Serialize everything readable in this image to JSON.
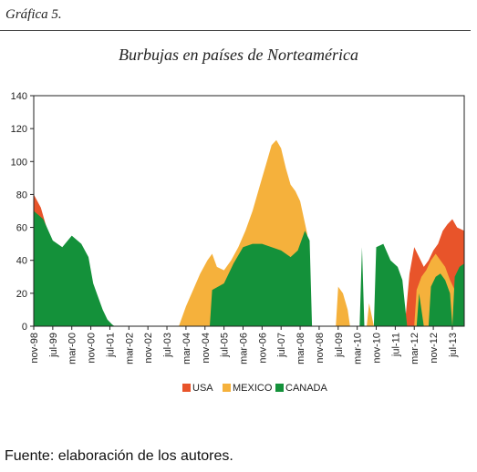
{
  "header": {
    "label": "Gráfica 5."
  },
  "source": "Fuente: elaboración de los autores.",
  "chart_data": {
    "type": "area",
    "title": "Burbujas en países de Norteamérica",
    "ylim": [
      0,
      140
    ],
    "yticks": [
      0,
      20,
      40,
      60,
      80,
      100,
      120,
      140
    ],
    "x_start": "nov-98",
    "x_end": "dic-13",
    "xticks": [
      "nov-98",
      "jul-99",
      "mar-00",
      "nov-00",
      "jul-01",
      "mar-02",
      "nov-02",
      "jul-03",
      "mar-04",
      "nov-04",
      "jul-05",
      "mar-06",
      "nov-06",
      "jul-07",
      "mar-08",
      "nov-08",
      "jul-09",
      "mar-10",
      "nov-10",
      "jul-11",
      "mar-12",
      "nov-12",
      "jul-13"
    ],
    "grid": false,
    "legend": "bottom",
    "colors": {
      "USA": "#e8542a",
      "MEXICO": "#f5b13c",
      "CANADA": "#14913a"
    },
    "series": [
      {
        "name": "USA",
        "points": [
          [
            "nov-98",
            80
          ],
          [
            "feb-99",
            72
          ],
          [
            "abr-99",
            62
          ],
          [
            "may-99",
            58
          ],
          [
            "jun-99",
            52
          ],
          [
            "jul-99",
            0
          ],
          [
            "nov-11",
            0
          ],
          [
            "ene-12",
            32
          ],
          [
            "mar-12",
            48
          ],
          [
            "may-12",
            42
          ],
          [
            "jul-12",
            36
          ],
          [
            "sep-12",
            40
          ],
          [
            "nov-12",
            46
          ],
          [
            "ene-13",
            50
          ],
          [
            "mar-13",
            58
          ],
          [
            "may-13",
            62
          ],
          [
            "jul-13",
            65
          ],
          [
            "sep-13",
            60
          ],
          [
            "dic-13",
            58
          ]
        ]
      },
      {
        "name": "MEXICO",
        "points": [
          [
            "dic-03",
            0
          ],
          [
            "mar-04",
            12
          ],
          [
            "jun-04",
            22
          ],
          [
            "sep-04",
            32
          ],
          [
            "dic-04",
            40
          ],
          [
            "feb-05",
            44
          ],
          [
            "abr-05",
            36
          ],
          [
            "jul-05",
            34
          ],
          [
            "oct-05",
            40
          ],
          [
            "ene-06",
            48
          ],
          [
            "abr-06",
            58
          ],
          [
            "jul-06",
            70
          ],
          [
            "oct-06",
            85
          ],
          [
            "ene-07",
            100
          ],
          [
            "mar-07",
            110
          ],
          [
            "may-07",
            113
          ],
          [
            "jul-07",
            108
          ],
          [
            "sep-07",
            96
          ],
          [
            "nov-07",
            86
          ],
          [
            "ene-08",
            82
          ],
          [
            "mar-08",
            76
          ],
          [
            "jun-08",
            56
          ],
          [
            "jul-08",
            0
          ],
          [
            "jun-09",
            0
          ],
          [
            "jul-09",
            24
          ],
          [
            "sep-09",
            20
          ],
          [
            "nov-09",
            10
          ],
          [
            "dic-09",
            0
          ],
          [
            "jul-10",
            0
          ],
          [
            "ago-10",
            14
          ],
          [
            "oct-10",
            0
          ],
          [
            "mar-12",
            0
          ],
          [
            "abr-12",
            22
          ],
          [
            "jun-12",
            30
          ],
          [
            "ago-12",
            34
          ],
          [
            "oct-12",
            40
          ],
          [
            "dic-12",
            44
          ],
          [
            "feb-13",
            40
          ],
          [
            "abr-13",
            36
          ],
          [
            "jun-13",
            28
          ],
          [
            "ago-13",
            22
          ],
          [
            "sep-13",
            0
          ]
        ]
      },
      {
        "name": "CANADA",
        "points": [
          [
            "nov-98",
            70
          ],
          [
            "mar-99",
            65
          ],
          [
            "jul-99",
            52
          ],
          [
            "nov-99",
            48
          ],
          [
            "mar-00",
            55
          ],
          [
            "jul-00",
            50
          ],
          [
            "oct-00",
            42
          ],
          [
            "dic-00",
            26
          ],
          [
            "feb-01",
            18
          ],
          [
            "abr-01",
            10
          ],
          [
            "jun-01",
            4
          ],
          [
            "ago-01",
            1
          ],
          [
            "sep-01",
            0
          ],
          [
            "ene-05",
            0
          ],
          [
            "feb-05",
            22
          ],
          [
            "jul-05",
            26
          ],
          [
            "nov-05",
            38
          ],
          [
            "mar-06",
            48
          ],
          [
            "jul-06",
            50
          ],
          [
            "nov-06",
            50
          ],
          [
            "mar-07",
            48
          ],
          [
            "jul-07",
            46
          ],
          [
            "nov-07",
            42
          ],
          [
            "feb-08",
            46
          ],
          [
            "may-08",
            58
          ],
          [
            "jul-08",
            52
          ],
          [
            "ago-08",
            0
          ],
          [
            "abr-10",
            0
          ],
          [
            "may-10",
            48
          ],
          [
            "jun-10",
            0
          ],
          [
            "oct-10",
            0
          ],
          [
            "nov-10",
            48
          ],
          [
            "feb-11",
            50
          ],
          [
            "may-11",
            40
          ],
          [
            "ago-11",
            36
          ],
          [
            "oct-11",
            28
          ],
          [
            "dic-11",
            0
          ],
          [
            "abr-12",
            0
          ],
          [
            "may-12",
            20
          ],
          [
            "jul-12",
            0
          ],
          [
            "sep-12",
            0
          ],
          [
            "oct-12",
            24
          ],
          [
            "dic-12",
            30
          ],
          [
            "feb-13",
            32
          ],
          [
            "abr-13",
            28
          ],
          [
            "jun-13",
            20
          ],
          [
            "jul-13",
            0
          ],
          [
            "ago-13",
            30
          ],
          [
            "oct-13",
            36
          ],
          [
            "dic-13",
            38
          ]
        ]
      }
    ]
  }
}
